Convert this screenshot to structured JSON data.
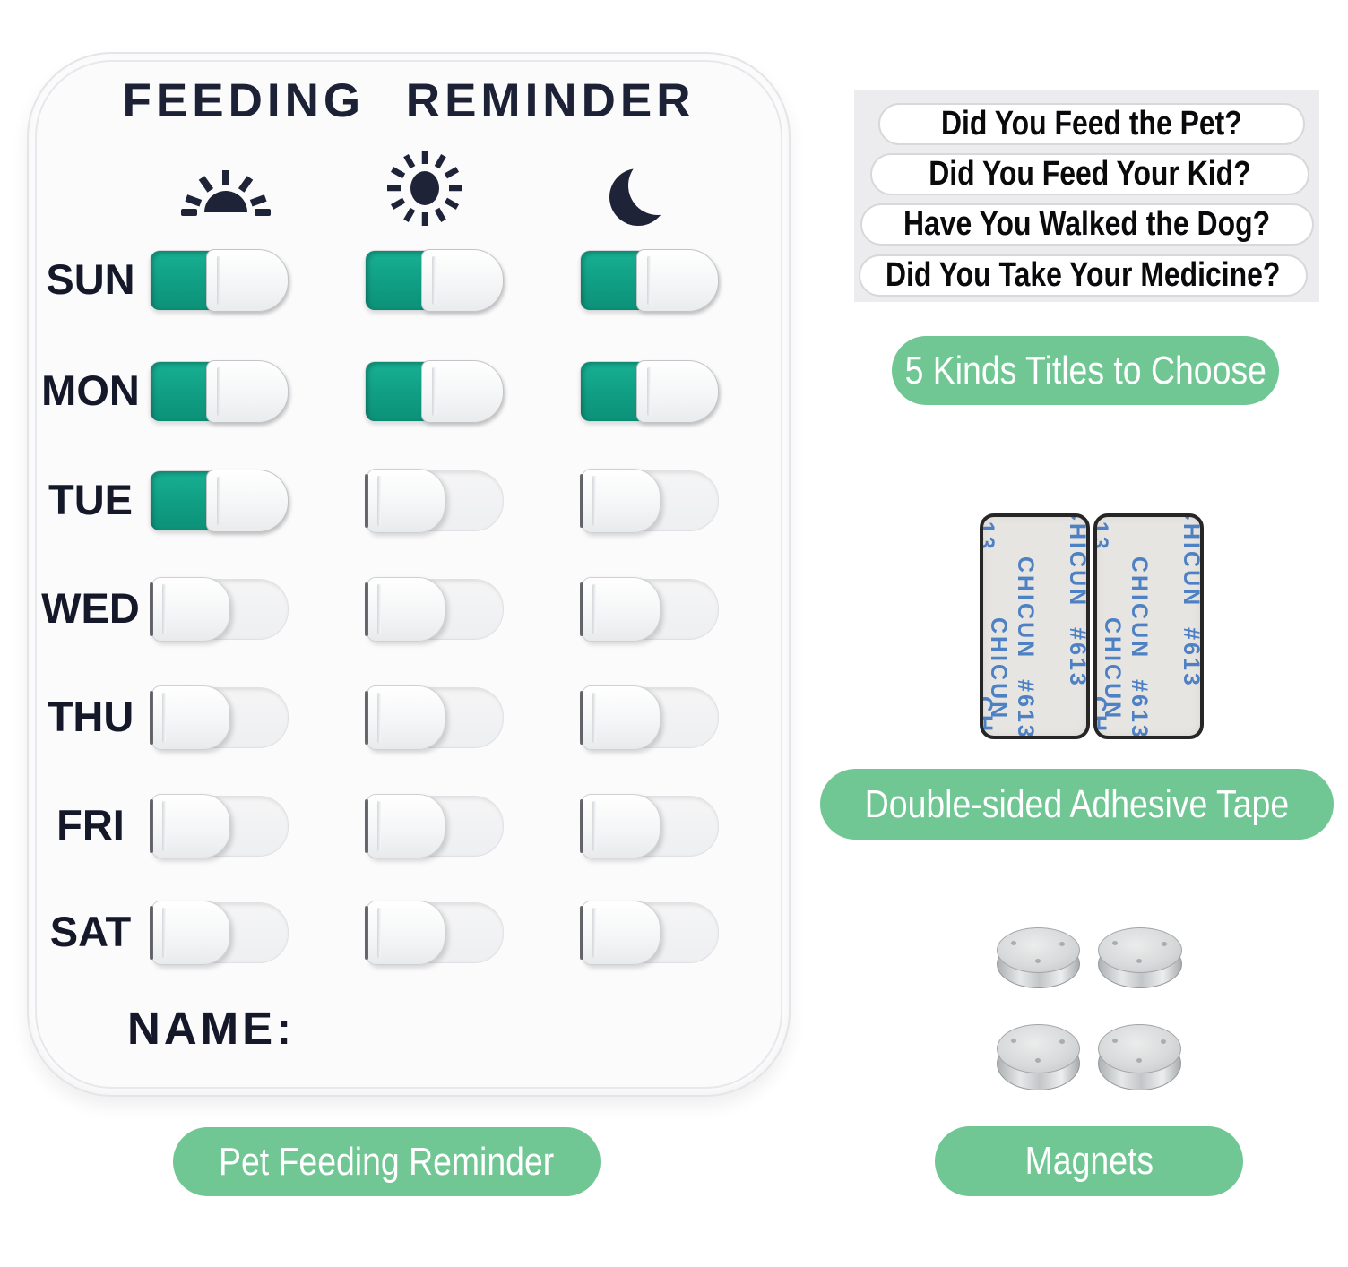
{
  "board": {
    "title": "FEEDING REMINDER",
    "name_label": "NAME:",
    "caption": "Pet Feeding Reminder",
    "columns": [
      {
        "icon": "sunrise-icon",
        "time": "morning"
      },
      {
        "icon": "sun-icon",
        "time": "noon"
      },
      {
        "icon": "moon-icon",
        "time": "evening"
      }
    ],
    "days": [
      {
        "label": "SUN",
        "states": [
          true,
          true,
          true
        ]
      },
      {
        "label": "MON",
        "states": [
          true,
          true,
          true
        ]
      },
      {
        "label": "TUE",
        "states": [
          true,
          false,
          false
        ]
      },
      {
        "label": "WED",
        "states": [
          false,
          false,
          false
        ]
      },
      {
        "label": "THU",
        "states": [
          false,
          false,
          false
        ]
      },
      {
        "label": "FRI",
        "states": [
          false,
          false,
          false
        ]
      },
      {
        "label": "SAT",
        "states": [
          false,
          false,
          false
        ]
      }
    ]
  },
  "stickers": {
    "titles": [
      "Did You Feed the Pet?",
      "Did You Feed Your Kid?",
      "Have You Walked the Dog?",
      "Did You Take Your Medicine?"
    ],
    "caption": "5 Kinds Titles to Choose"
  },
  "tape": {
    "brand_text": "CHICUN #613",
    "brand_fragment_top": "613",
    "brand_fragment_bottom": "CHICUN",
    "count": 2,
    "caption": "Double-sided Adhesive Tape"
  },
  "magnets": {
    "count": 4,
    "caption": "Magnets"
  },
  "colors": {
    "toggle_green": "#109e83",
    "accent_green": "#70c794",
    "title_navy": "#1c2136",
    "tape_text_blue": "#4e80c4"
  }
}
